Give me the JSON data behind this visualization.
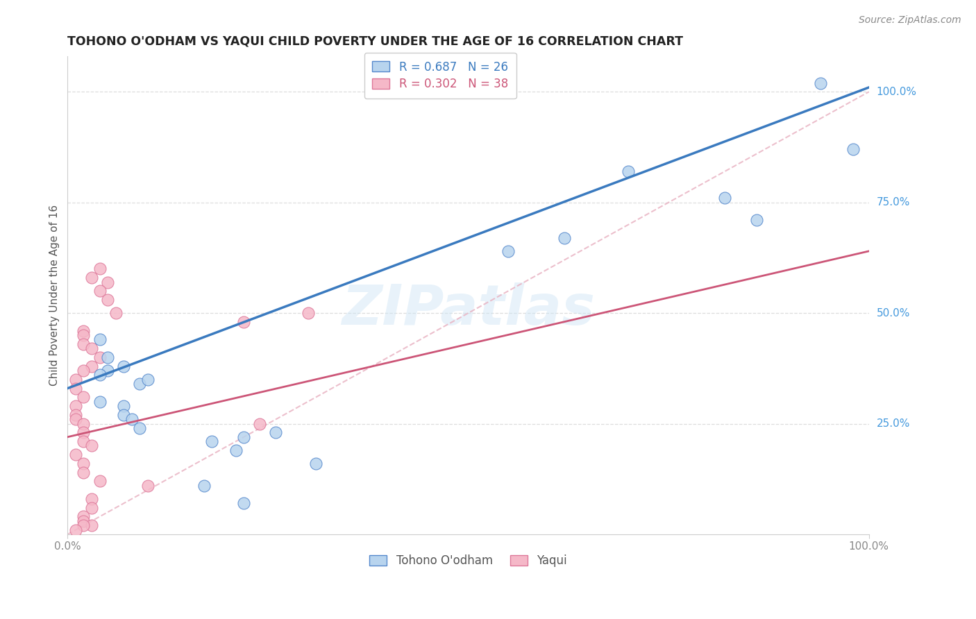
{
  "title": "TOHONO O'ODHAM VS YAQUI CHILD POVERTY UNDER THE AGE OF 16 CORRELATION CHART",
  "source": "Source: ZipAtlas.com",
  "ylabel": "Child Poverty Under the Age of 16",
  "xlim": [
    0,
    1
  ],
  "ylim": [
    0,
    1.08
  ],
  "xtick_labels": [
    "0.0%",
    "100.0%"
  ],
  "ytick_labels": [
    "25.0%",
    "50.0%",
    "75.0%",
    "100.0%"
  ],
  "ytick_vals": [
    0.25,
    0.5,
    0.75,
    1.0
  ],
  "watermark": "ZIPatlas",
  "tohono_x": [
    0.94,
    0.98,
    0.7,
    0.82,
    0.86,
    0.55,
    0.62,
    0.04,
    0.05,
    0.07,
    0.05,
    0.04,
    0.09,
    0.1,
    0.04,
    0.07,
    0.07,
    0.08,
    0.09,
    0.18,
    0.21,
    0.26,
    0.31,
    0.17,
    0.22,
    0.22
  ],
  "tohono_y": [
    1.02,
    0.87,
    0.82,
    0.76,
    0.71,
    0.64,
    0.67,
    0.44,
    0.4,
    0.38,
    0.37,
    0.36,
    0.34,
    0.35,
    0.3,
    0.29,
    0.27,
    0.26,
    0.24,
    0.21,
    0.19,
    0.23,
    0.16,
    0.11,
    0.22,
    0.07
  ],
  "yaqui_x": [
    0.04,
    0.03,
    0.05,
    0.04,
    0.05,
    0.06,
    0.02,
    0.02,
    0.02,
    0.03,
    0.04,
    0.03,
    0.02,
    0.01,
    0.01,
    0.02,
    0.01,
    0.01,
    0.01,
    0.02,
    0.02,
    0.02,
    0.03,
    0.01,
    0.02,
    0.02,
    0.04,
    0.1,
    0.24,
    0.22,
    0.3,
    0.03,
    0.03,
    0.02,
    0.02,
    0.03,
    0.02,
    0.01
  ],
  "yaqui_y": [
    0.6,
    0.58,
    0.57,
    0.55,
    0.53,
    0.5,
    0.46,
    0.45,
    0.43,
    0.42,
    0.4,
    0.38,
    0.37,
    0.35,
    0.33,
    0.31,
    0.29,
    0.27,
    0.26,
    0.25,
    0.23,
    0.21,
    0.2,
    0.18,
    0.16,
    0.14,
    0.12,
    0.11,
    0.25,
    0.48,
    0.5,
    0.08,
    0.06,
    0.04,
    0.03,
    0.02,
    0.02,
    0.01
  ],
  "R_tohono": 0.687,
  "N_tohono": 26,
  "R_yaqui": 0.302,
  "N_yaqui": 38,
  "color_tohono_fill": "#b8d4ee",
  "color_tohono_edge": "#5588cc",
  "color_yaqui_fill": "#f5b8c8",
  "color_yaqui_edge": "#dd7799",
  "color_line_tohono": "#3a7abf",
  "color_line_yaqui": "#cc5577",
  "color_diag": "#e8b0c0",
  "background_color": "#ffffff",
  "grid_color": "#dddddd",
  "title_color": "#222222",
  "axis_label_color": "#555555",
  "ytick_color": "#4499dd",
  "xtick_color": "#888888",
  "title_fontsize": 12.5,
  "source_fontsize": 10,
  "legend_fontsize": 12,
  "ylabel_fontsize": 11,
  "tick_fontsize": 11,
  "watermark_fontsize": 58,
  "reg_tohono_slope": 0.68,
  "reg_tohono_intercept": 0.33,
  "reg_yaqui_slope": 0.42,
  "reg_yaqui_intercept": 0.22
}
